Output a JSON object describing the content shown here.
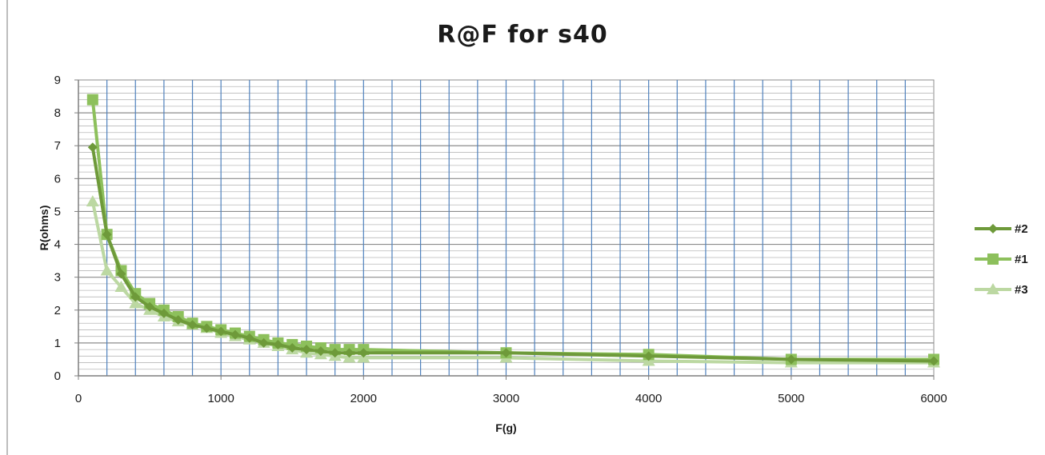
{
  "chart_data": {
    "type": "line",
    "title": "R@F for s40",
    "xlabel": "F(g)",
    "ylabel": "R(ohms)",
    "xlim": [
      0,
      6000
    ],
    "ylim": [
      0,
      9
    ],
    "x_ticks": [
      0,
      1000,
      2000,
      3000,
      4000,
      5000,
      6000
    ],
    "y_ticks": [
      0,
      1,
      2,
      3,
      4,
      5,
      6,
      7,
      8,
      9
    ],
    "grid": true,
    "legend_position": "right",
    "series": [
      {
        "name": "#2",
        "marker": "diamond",
        "color": "#6e9a3a",
        "x": [
          100,
          200,
          300,
          400,
          500,
          600,
          700,
          800,
          900,
          1000,
          1100,
          1200,
          1300,
          1400,
          1500,
          1600,
          1700,
          1800,
          1900,
          2000,
          3000,
          4000,
          5000,
          6000
        ],
        "y": [
          6.95,
          4.3,
          3.1,
          2.4,
          2.1,
          1.9,
          1.7,
          1.55,
          1.45,
          1.35,
          1.25,
          1.15,
          1.0,
          0.95,
          0.85,
          0.8,
          0.75,
          0.7,
          0.7,
          0.7,
          0.7,
          0.6,
          0.5,
          0.45
        ]
      },
      {
        "name": "#1",
        "marker": "square",
        "color": "#8dc05c",
        "x": [
          100,
          200,
          300,
          400,
          500,
          600,
          700,
          800,
          900,
          1000,
          1100,
          1200,
          1300,
          1400,
          1500,
          1600,
          1700,
          1800,
          1900,
          2000,
          3000,
          4000,
          5000,
          6000
        ],
        "y": [
          8.4,
          4.3,
          3.2,
          2.5,
          2.2,
          2.0,
          1.8,
          1.6,
          1.5,
          1.4,
          1.3,
          1.2,
          1.1,
          1.0,
          0.95,
          0.9,
          0.85,
          0.8,
          0.8,
          0.8,
          0.7,
          0.65,
          0.5,
          0.5
        ]
      },
      {
        "name": "#3",
        "marker": "triangle",
        "color": "#bcd8a2",
        "x": [
          100,
          200,
          300,
          400,
          500,
          600,
          700,
          800,
          900,
          1000,
          1100,
          1200,
          1300,
          1400,
          1500,
          1600,
          1700,
          1800,
          1900,
          2000,
          3000,
          4000,
          5000,
          6000
        ],
        "y": [
          5.3,
          3.2,
          2.7,
          2.2,
          2.0,
          1.8,
          1.65,
          1.55,
          1.45,
          1.3,
          1.2,
          1.1,
          1.0,
          0.9,
          0.8,
          0.7,
          0.65,
          0.6,
          0.55,
          0.55,
          0.55,
          0.45,
          0.4,
          0.4
        ]
      }
    ]
  }
}
